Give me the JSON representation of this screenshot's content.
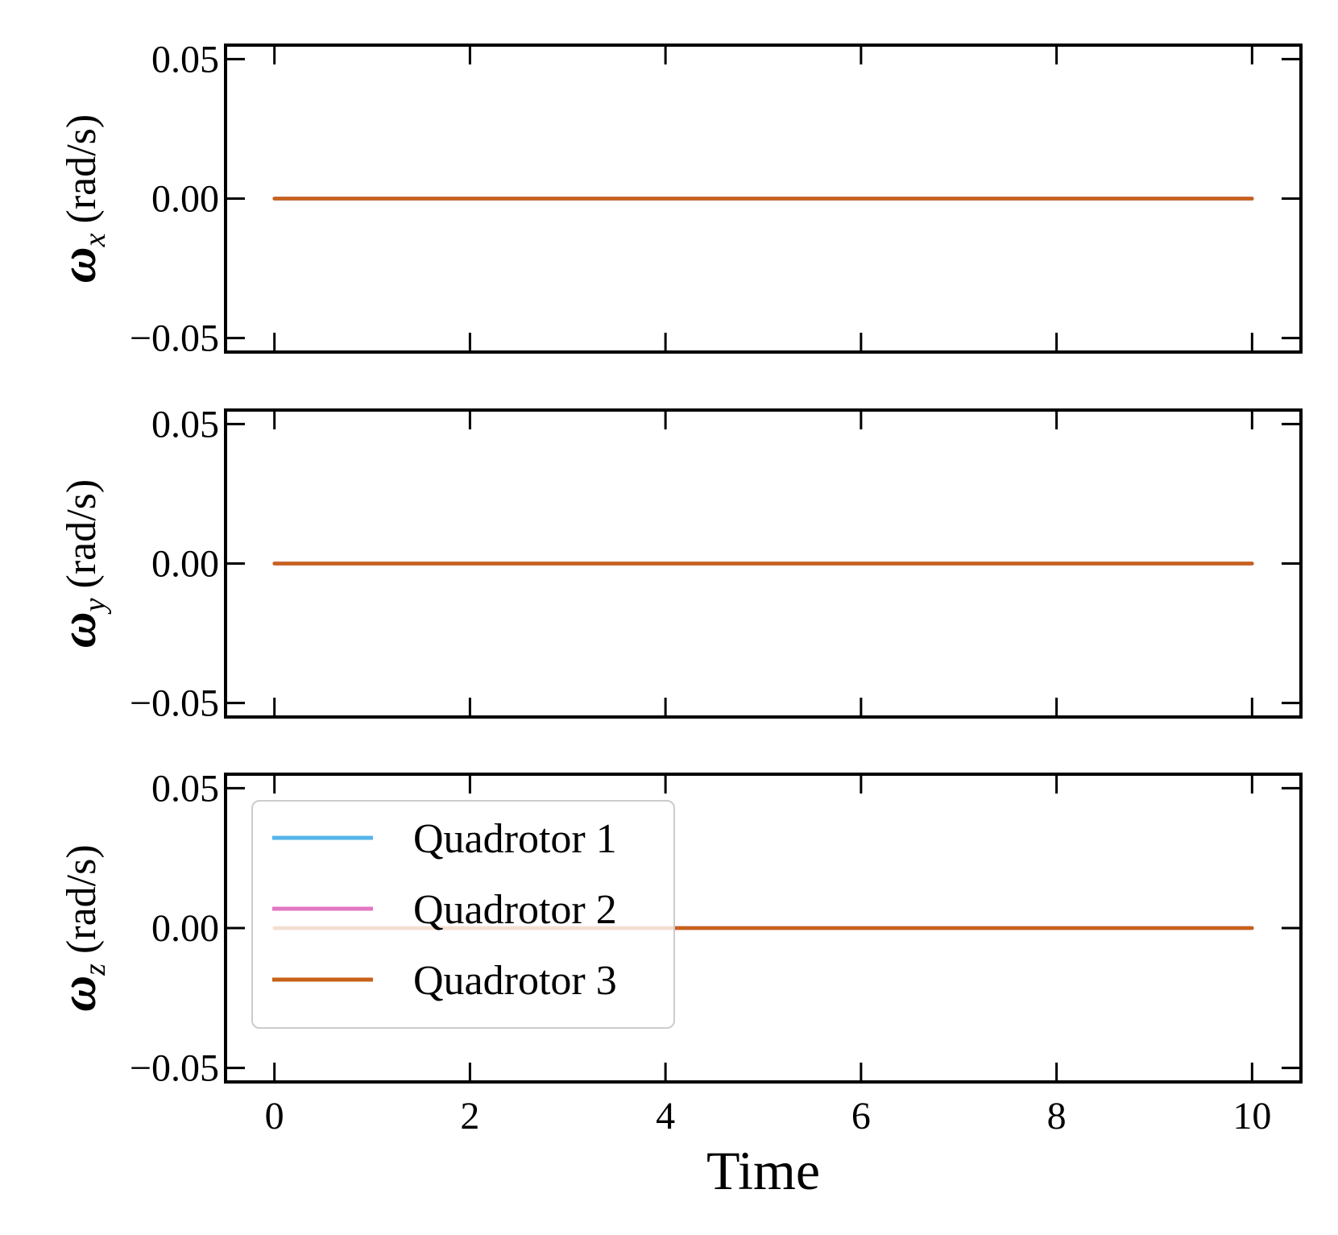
{
  "chart_data": [
    {
      "type": "line",
      "ylabel": {
        "symbol": "ω",
        "subscript": "x",
        "units": "(rad/s)"
      },
      "xlabel": "",
      "xlim": [
        -0.5,
        10.5
      ],
      "ylim": [
        -0.055,
        0.055
      ],
      "xticks": [
        0,
        2,
        4,
        6,
        8,
        10
      ],
      "xticklabels": [
        "",
        "",
        "",
        "",
        "",
        ""
      ],
      "yticks": [
        -0.05,
        0.0,
        0.05
      ],
      "yticklabels": [
        "−0.05",
        "0.00",
        "0.05"
      ],
      "grid": false,
      "x": [
        0,
        10
      ],
      "series": [
        {
          "name": "Quadrotor 1",
          "color": "#56B4E9",
          "values": [
            0,
            0
          ]
        },
        {
          "name": "Quadrotor 2",
          "color": "#E377C2",
          "values": [
            0,
            0
          ]
        },
        {
          "name": "Quadrotor 3",
          "color": "#C8611A",
          "values": [
            0,
            0
          ]
        }
      ]
    },
    {
      "type": "line",
      "ylabel": {
        "symbol": "ω",
        "subscript": "y",
        "units": "(rad/s)"
      },
      "xlabel": "",
      "xlim": [
        -0.5,
        10.5
      ],
      "ylim": [
        -0.055,
        0.055
      ],
      "xticks": [
        0,
        2,
        4,
        6,
        8,
        10
      ],
      "xticklabels": [
        "",
        "",
        "",
        "",
        "",
        ""
      ],
      "yticks": [
        -0.05,
        0.0,
        0.05
      ],
      "yticklabels": [
        "−0.05",
        "0.00",
        "0.05"
      ],
      "grid": false,
      "x": [
        0,
        10
      ],
      "series": [
        {
          "name": "Quadrotor 1",
          "color": "#56B4E9",
          "values": [
            0,
            0
          ]
        },
        {
          "name": "Quadrotor 2",
          "color": "#E377C2",
          "values": [
            0,
            0
          ]
        },
        {
          "name": "Quadrotor 3",
          "color": "#C8611A",
          "values": [
            0,
            0
          ]
        }
      ]
    },
    {
      "type": "line",
      "ylabel": {
        "symbol": "ω",
        "subscript": "z",
        "units": "(rad/s)"
      },
      "xlabel": "Time",
      "xlim": [
        -0.5,
        10.5
      ],
      "ylim": [
        -0.055,
        0.055
      ],
      "xticks": [
        0,
        2,
        4,
        6,
        8,
        10
      ],
      "xticklabels": [
        "0",
        "2",
        "4",
        "6",
        "8",
        "10"
      ],
      "yticks": [
        -0.05,
        0.0,
        0.05
      ],
      "yticklabels": [
        "−0.05",
        "0.00",
        "0.05"
      ],
      "grid": false,
      "legend": {
        "position": "upper-left",
        "entries": [
          "Quadrotor 1",
          "Quadrotor 2",
          "Quadrotor 3"
        ]
      },
      "x": [
        0,
        10
      ],
      "series": [
        {
          "name": "Quadrotor 1",
          "color": "#56B4E9",
          "values": [
            0,
            0
          ]
        },
        {
          "name": "Quadrotor 2",
          "color": "#E377C2",
          "values": [
            0,
            0
          ]
        },
        {
          "name": "Quadrotor 3",
          "color": "#C8611A",
          "values": [
            0,
            0
          ]
        }
      ]
    }
  ]
}
